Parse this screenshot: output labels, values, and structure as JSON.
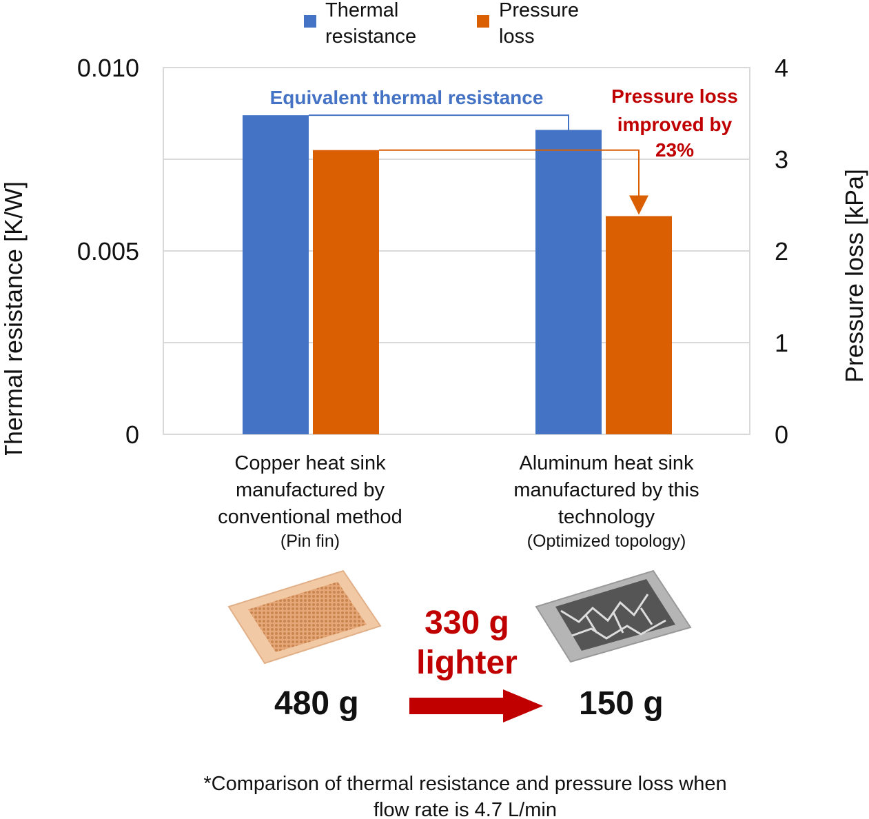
{
  "chart_data": {
    "type": "bar",
    "categories": [
      "Copper heat sink manufactured by conventional method",
      "Aluminum heat sink manufactured by this technology"
    ],
    "category_sublabels": [
      "(Pin fin)",
      "(Optimized topology)"
    ],
    "series": [
      {
        "name": "Thermal resistance",
        "axis": "left",
        "color": "#4472c4",
        "values": [
          0.0087,
          0.0083
        ]
      },
      {
        "name": "Pressure loss",
        "axis": "right",
        "color": "#d95f02",
        "values": [
          3.1,
          2.38
        ]
      }
    ],
    "y_left": {
      "label": "Thermal resistance [K/W]",
      "range": [
        0,
        0.01
      ],
      "ticks": [
        "0",
        "0.005",
        "0.010"
      ]
    },
    "y_right": {
      "label": "Pressure loss [kPa]",
      "range": [
        0,
        4
      ],
      "ticks": [
        "0",
        "1",
        "2",
        "3",
        "4"
      ]
    },
    "grid": true,
    "legend_placement": "top",
    "legend": [
      {
        "line1": "Thermal",
        "line2": "resistance"
      },
      {
        "line1": "Pressure",
        "line2": "loss"
      }
    ],
    "annotations": {
      "equivalent": "Equivalent thermal resistance",
      "pressure_lines": [
        "Pressure loss",
        "improved by",
        "23%"
      ]
    }
  },
  "weights": {
    "copper": "480 g",
    "aluminum": "150 g",
    "diff_line1": "330 g",
    "diff_line2": "lighter"
  },
  "colors": {
    "blue": "#4472c4",
    "orange": "#d95f02",
    "red": "#c00000"
  },
  "footnote_line1": "*Comparison of thermal resistance and pressure loss when",
  "footnote_line2": "flow rate is 4.7 L/min"
}
